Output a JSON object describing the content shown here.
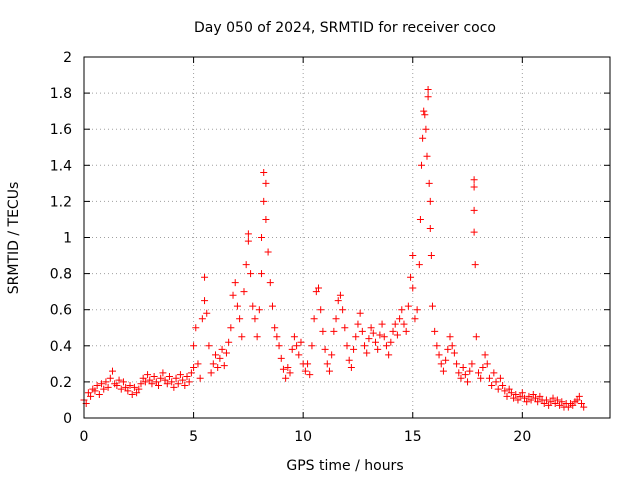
{
  "chart_data": {
    "type": "scatter",
    "title": "Day 050 of 2024, SRMTID for receiver coco",
    "xlabel": "GPS time / hours",
    "ylabel": "SRMTID / TECUs",
    "xlim": [
      0,
      24
    ],
    "ylim": [
      0,
      2
    ],
    "x_ticks": [
      0,
      5,
      10,
      15,
      20
    ],
    "x_tick_labels": [
      "0",
      "5",
      "10",
      "15",
      "20"
    ],
    "y_ticks": [
      0,
      0.2,
      0.4,
      0.6,
      0.8,
      1,
      1.2,
      1.4,
      1.6,
      1.8,
      2
    ],
    "y_tick_labels": [
      "0",
      "0.2",
      "0.4",
      "0.6",
      "0.8",
      "1",
      "1.2",
      "1.4",
      "1.6",
      "1.8",
      "2"
    ],
    "grid": true,
    "marker": "plus",
    "color": "#ff0000",
    "series": [
      {
        "name": "SRMTID",
        "points": [
          [
            0.0,
            0.1
          ],
          [
            0.1,
            0.08
          ],
          [
            0.2,
            0.14
          ],
          [
            0.3,
            0.12
          ],
          [
            0.4,
            0.16
          ],
          [
            0.5,
            0.15
          ],
          [
            0.6,
            0.18
          ],
          [
            0.7,
            0.13
          ],
          [
            0.8,
            0.19
          ],
          [
            0.9,
            0.16
          ],
          [
            1.0,
            0.2
          ],
          [
            1.1,
            0.17
          ],
          [
            1.2,
            0.22
          ],
          [
            1.3,
            0.26
          ],
          [
            1.4,
            0.19
          ],
          [
            1.5,
            0.18
          ],
          [
            1.6,
            0.21
          ],
          [
            1.7,
            0.16
          ],
          [
            1.8,
            0.2
          ],
          [
            1.9,
            0.17
          ],
          [
            2.0,
            0.15
          ],
          [
            2.1,
            0.18
          ],
          [
            2.2,
            0.13
          ],
          [
            2.3,
            0.17
          ],
          [
            2.4,
            0.14
          ],
          [
            2.5,
            0.16
          ],
          [
            2.6,
            0.19
          ],
          [
            2.7,
            0.22
          ],
          [
            2.8,
            0.2
          ],
          [
            2.9,
            0.24
          ],
          [
            3.0,
            0.21
          ],
          [
            3.1,
            0.19
          ],
          [
            3.2,
            0.23
          ],
          [
            3.3,
            0.2
          ],
          [
            3.4,
            0.18
          ],
          [
            3.5,
            0.22
          ],
          [
            3.6,
            0.25
          ],
          [
            3.7,
            0.21
          ],
          [
            3.8,
            0.19
          ],
          [
            3.9,
            0.23
          ],
          [
            4.0,
            0.2
          ],
          [
            4.1,
            0.17
          ],
          [
            4.2,
            0.22
          ],
          [
            4.3,
            0.19
          ],
          [
            4.4,
            0.24
          ],
          [
            4.5,
            0.21
          ],
          [
            4.6,
            0.18
          ],
          [
            4.7,
            0.23
          ],
          [
            4.8,
            0.2
          ],
          [
            4.9,
            0.25
          ],
          [
            5.0,
            0.28
          ],
          [
            5.0,
            0.4
          ],
          [
            5.1,
            0.5
          ],
          [
            5.2,
            0.3
          ],
          [
            5.3,
            0.22
          ],
          [
            5.4,
            0.55
          ],
          [
            5.5,
            0.65
          ],
          [
            5.5,
            0.78
          ],
          [
            5.6,
            0.58
          ],
          [
            5.7,
            0.4
          ],
          [
            5.8,
            0.25
          ],
          [
            5.9,
            0.3
          ],
          [
            6.0,
            0.35
          ],
          [
            6.1,
            0.28
          ],
          [
            6.2,
            0.33
          ],
          [
            6.3,
            0.38
          ],
          [
            6.4,
            0.29
          ],
          [
            6.5,
            0.36
          ],
          [
            6.6,
            0.42
          ],
          [
            6.7,
            0.5
          ],
          [
            6.8,
            0.68
          ],
          [
            6.9,
            0.75
          ],
          [
            7.0,
            0.62
          ],
          [
            7.1,
            0.55
          ],
          [
            7.2,
            0.45
          ],
          [
            7.3,
            0.7
          ],
          [
            7.4,
            0.85
          ],
          [
            7.5,
            0.98
          ],
          [
            7.5,
            1.02
          ],
          [
            7.6,
            0.8
          ],
          [
            7.7,
            0.62
          ],
          [
            7.8,
            0.55
          ],
          [
            7.9,
            0.45
          ],
          [
            8.0,
            0.6
          ],
          [
            8.1,
            0.8
          ],
          [
            8.1,
            1.0
          ],
          [
            8.2,
            1.2
          ],
          [
            8.2,
            1.36
          ],
          [
            8.3,
            1.3
          ],
          [
            8.3,
            1.1
          ],
          [
            8.4,
            0.92
          ],
          [
            8.5,
            0.75
          ],
          [
            8.6,
            0.62
          ],
          [
            8.7,
            0.5
          ],
          [
            8.8,
            0.45
          ],
          [
            8.9,
            0.4
          ],
          [
            9.0,
            0.33
          ],
          [
            9.1,
            0.27
          ],
          [
            9.2,
            0.22
          ],
          [
            9.3,
            0.28
          ],
          [
            9.4,
            0.25
          ],
          [
            9.5,
            0.38
          ],
          [
            9.6,
            0.45
          ],
          [
            9.7,
            0.4
          ],
          [
            9.8,
            0.35
          ],
          [
            9.9,
            0.42
          ],
          [
            10.0,
            0.3
          ],
          [
            10.1,
            0.26
          ],
          [
            10.2,
            0.3
          ],
          [
            10.3,
            0.24
          ],
          [
            10.4,
            0.4
          ],
          [
            10.5,
            0.55
          ],
          [
            10.6,
            0.7
          ],
          [
            10.7,
            0.72
          ],
          [
            10.8,
            0.6
          ],
          [
            10.9,
            0.48
          ],
          [
            11.0,
            0.38
          ],
          [
            11.1,
            0.3
          ],
          [
            11.2,
            0.26
          ],
          [
            11.3,
            0.35
          ],
          [
            11.4,
            0.48
          ],
          [
            11.5,
            0.55
          ],
          [
            11.6,
            0.65
          ],
          [
            11.7,
            0.68
          ],
          [
            11.8,
            0.6
          ],
          [
            11.9,
            0.5
          ],
          [
            12.0,
            0.4
          ],
          [
            12.1,
            0.32
          ],
          [
            12.2,
            0.28
          ],
          [
            12.3,
            0.38
          ],
          [
            12.4,
            0.45
          ],
          [
            12.5,
            0.52
          ],
          [
            12.6,
            0.58
          ],
          [
            12.7,
            0.48
          ],
          [
            12.8,
            0.4
          ],
          [
            12.9,
            0.36
          ],
          [
            13.0,
            0.44
          ],
          [
            13.1,
            0.5
          ],
          [
            13.2,
            0.47
          ],
          [
            13.3,
            0.42
          ],
          [
            13.4,
            0.38
          ],
          [
            13.5,
            0.46
          ],
          [
            13.6,
            0.52
          ],
          [
            13.7,
            0.45
          ],
          [
            13.8,
            0.4
          ],
          [
            13.9,
            0.35
          ],
          [
            14.0,
            0.42
          ],
          [
            14.1,
            0.48
          ],
          [
            14.2,
            0.52
          ],
          [
            14.3,
            0.46
          ],
          [
            14.4,
            0.55
          ],
          [
            14.5,
            0.6
          ],
          [
            14.6,
            0.52
          ],
          [
            14.7,
            0.48
          ],
          [
            14.8,
            0.62
          ],
          [
            14.9,
            0.78
          ],
          [
            15.0,
            0.9
          ],
          [
            15.0,
            0.72
          ],
          [
            15.1,
            0.55
          ],
          [
            15.2,
            0.6
          ],
          [
            15.3,
            0.85
          ],
          [
            15.35,
            1.1
          ],
          [
            15.4,
            1.4
          ],
          [
            15.45,
            1.55
          ],
          [
            15.5,
            1.7
          ],
          [
            15.55,
            1.68
          ],
          [
            15.6,
            1.6
          ],
          [
            15.65,
            1.45
          ],
          [
            15.7,
            1.82
          ],
          [
            15.7,
            1.78
          ],
          [
            15.75,
            1.3
          ],
          [
            15.8,
            1.2
          ],
          [
            15.8,
            1.05
          ],
          [
            15.85,
            0.9
          ],
          [
            15.9,
            0.62
          ],
          [
            16.0,
            0.48
          ],
          [
            16.1,
            0.4
          ],
          [
            16.2,
            0.35
          ],
          [
            16.3,
            0.3
          ],
          [
            16.4,
            0.26
          ],
          [
            16.5,
            0.32
          ],
          [
            16.6,
            0.38
          ],
          [
            16.7,
            0.45
          ],
          [
            16.8,
            0.4
          ],
          [
            16.9,
            0.36
          ],
          [
            17.0,
            0.3
          ],
          [
            17.1,
            0.25
          ],
          [
            17.2,
            0.22
          ],
          [
            17.3,
            0.28
          ],
          [
            17.4,
            0.24
          ],
          [
            17.5,
            0.2
          ],
          [
            17.6,
            0.26
          ],
          [
            17.7,
            0.3
          ],
          [
            17.8,
            1.32
          ],
          [
            17.8,
            1.28
          ],
          [
            17.8,
            1.15
          ],
          [
            17.8,
            1.03
          ],
          [
            17.85,
            0.85
          ],
          [
            17.9,
            0.45
          ],
          [
            18.0,
            0.25
          ],
          [
            18.1,
            0.22
          ],
          [
            18.2,
            0.28
          ],
          [
            18.3,
            0.35
          ],
          [
            18.4,
            0.3
          ],
          [
            18.5,
            0.22
          ],
          [
            18.6,
            0.18
          ],
          [
            18.7,
            0.25
          ],
          [
            18.8,
            0.2
          ],
          [
            18.9,
            0.16
          ],
          [
            19.0,
            0.22
          ],
          [
            19.1,
            0.18
          ],
          [
            19.2,
            0.15
          ],
          [
            19.3,
            0.12
          ],
          [
            19.4,
            0.16
          ],
          [
            19.5,
            0.14
          ],
          [
            19.6,
            0.11
          ],
          [
            19.7,
            0.13
          ],
          [
            19.8,
            0.1
          ],
          [
            19.9,
            0.12
          ],
          [
            20.0,
            0.14
          ],
          [
            20.1,
            0.11
          ],
          [
            20.2,
            0.09
          ],
          [
            20.3,
            0.12
          ],
          [
            20.4,
            0.1
          ],
          [
            20.5,
            0.13
          ],
          [
            20.6,
            0.11
          ],
          [
            20.7,
            0.09
          ],
          [
            20.8,
            0.12
          ],
          [
            20.9,
            0.1
          ],
          [
            21.0,
            0.08
          ],
          [
            21.1,
            0.1
          ],
          [
            21.2,
            0.07
          ],
          [
            21.3,
            0.09
          ],
          [
            21.4,
            0.11
          ],
          [
            21.5,
            0.08
          ],
          [
            21.6,
            0.1
          ],
          [
            21.7,
            0.07
          ],
          [
            21.8,
            0.09
          ],
          [
            21.9,
            0.06
          ],
          [
            22.0,
            0.08
          ],
          [
            22.1,
            0.06
          ],
          [
            22.2,
            0.08
          ],
          [
            22.3,
            0.07
          ],
          [
            22.4,
            0.09
          ],
          [
            22.5,
            0.1
          ],
          [
            22.6,
            0.12
          ],
          [
            22.7,
            0.08
          ],
          [
            22.8,
            0.06
          ]
        ]
      }
    ]
  }
}
